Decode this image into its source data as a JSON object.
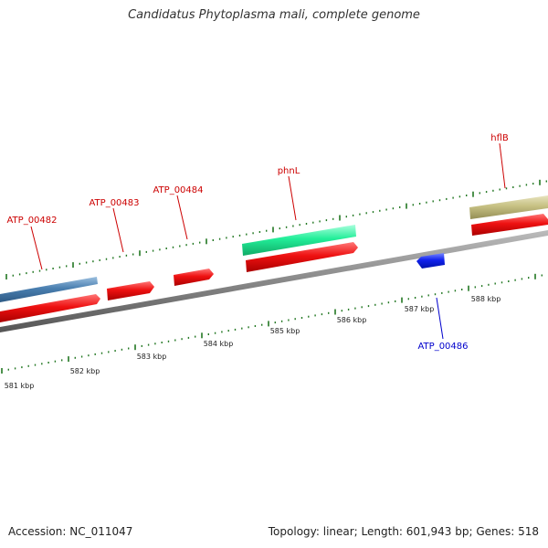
{
  "title": "Candidatus Phytoplasma mali, complete genome",
  "accession": "Accession: NC_011047",
  "summary": "Topology: linear; Length: 601,943 bp; Genes: 518",
  "scale_labels": [
    "581 kbp",
    "582 kbp",
    "583 kbp",
    "584 kbp",
    "585 kbp",
    "586 kbp",
    "587 kbp",
    "588 kbp"
  ],
  "colors": {
    "cds_red": "#ee1111",
    "gene_blue": "#4a7fb0",
    "gene_green": "#22ee99",
    "gene_khaki": "#c6c083",
    "reverse_blue": "#1122ee",
    "label_red": "#cc0000",
    "label_blue": "#0000cc",
    "tick_green": "#227722",
    "backbone_grey": "#888888"
  },
  "annotations": [
    {
      "id": "ATP_00482",
      "label": "ATP_00482",
      "color": "label_red"
    },
    {
      "id": "ATP_00483",
      "label": "ATP_00483",
      "color": "label_red"
    },
    {
      "id": "ATP_00484",
      "label": "ATP_00484",
      "color": "label_red"
    },
    {
      "id": "phnL",
      "label": "phnL",
      "color": "label_red"
    },
    {
      "id": "hflB",
      "label": "hflB",
      "color": "label_red"
    },
    {
      "id": "ATP_00486",
      "label": "ATP_00486",
      "color": "label_blue"
    }
  ]
}
